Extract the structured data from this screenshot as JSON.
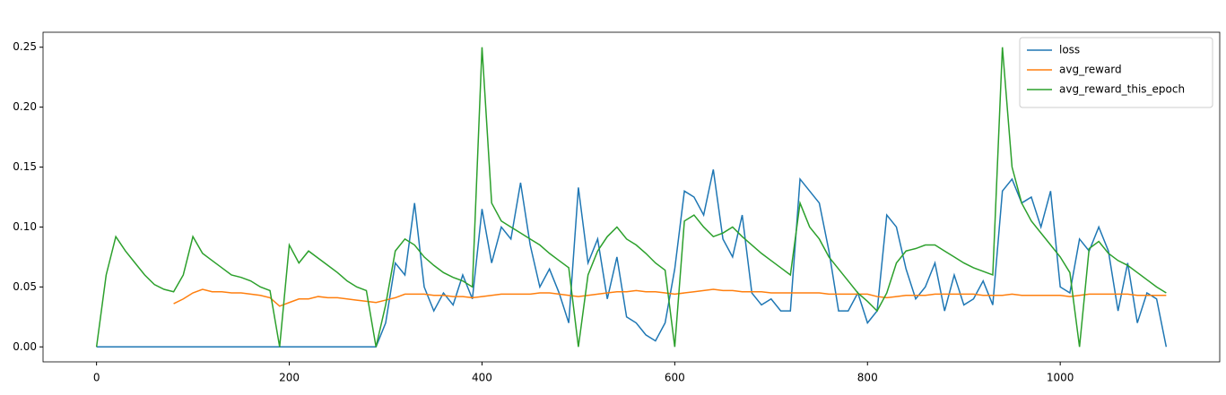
{
  "chart_data": {
    "type": "line",
    "x": [
      0,
      10,
      20,
      30,
      40,
      50,
      60,
      70,
      80,
      90,
      100,
      110,
      120,
      130,
      140,
      150,
      160,
      170,
      180,
      190,
      200,
      210,
      220,
      230,
      240,
      250,
      260,
      270,
      280,
      290,
      300,
      310,
      320,
      330,
      340,
      350,
      360,
      370,
      380,
      390,
      400,
      410,
      420,
      430,
      440,
      450,
      460,
      470,
      480,
      490,
      500,
      510,
      520,
      530,
      540,
      550,
      560,
      570,
      580,
      590,
      600,
      610,
      620,
      630,
      640,
      650,
      660,
      670,
      680,
      690,
      700,
      710,
      720,
      730,
      740,
      750,
      760,
      770,
      780,
      790,
      800,
      810,
      820,
      830,
      840,
      850,
      860,
      870,
      880,
      890,
      900,
      910,
      920,
      930,
      940,
      950,
      960,
      970,
      980,
      990,
      1000,
      1010,
      1020,
      1030,
      1040,
      1050,
      1060,
      1070,
      1080,
      1090,
      1100,
      1110
    ],
    "series": [
      {
        "name": "loss",
        "color": "#1f77b4",
        "values": [
          0,
          0,
          0,
          0,
          0,
          0,
          0,
          0,
          0,
          0,
          0,
          0,
          0,
          0,
          0,
          0,
          0,
          0,
          0,
          0,
          0,
          0,
          0,
          0,
          0,
          0,
          0,
          0,
          0,
          0,
          0.02,
          0.07,
          0.06,
          0.12,
          0.05,
          0.03,
          0.045,
          0.035,
          0.06,
          0.04,
          0.115,
          0.07,
          0.1,
          0.09,
          0.137,
          0.085,
          0.05,
          0.065,
          0.045,
          0.02,
          0.133,
          0.07,
          0.09,
          0.04,
          0.075,
          0.025,
          0.02,
          0.01,
          0.005,
          0.02,
          0.065,
          0.13,
          0.125,
          0.11,
          0.148,
          0.09,
          0.075,
          0.11,
          0.045,
          0.035,
          0.04,
          0.03,
          0.03,
          0.14,
          0.13,
          0.12,
          0.08,
          0.03,
          0.03,
          0.045,
          0.02,
          0.03,
          0.11,
          0.1,
          0.065,
          0.04,
          0.05,
          0.07,
          0.03,
          0.06,
          0.035,
          0.04,
          0.055,
          0.035,
          0.13,
          0.14,
          0.12,
          0.125,
          0.1,
          0.13,
          0.05,
          0.045,
          0.09,
          0.08,
          0.1,
          0.08,
          0.03,
          0.07,
          0.02,
          0.045,
          0.04,
          0
        ]
      },
      {
        "name": "avg_reward",
        "color": "#ff7f0e",
        "values": [
          null,
          null,
          null,
          null,
          null,
          null,
          null,
          null,
          0.036,
          0.04,
          0.045,
          0.048,
          0.046,
          0.046,
          0.045,
          0.045,
          0.044,
          0.043,
          0.041,
          0.034,
          0.037,
          0.04,
          0.04,
          0.042,
          0.041,
          0.041,
          0.04,
          0.039,
          0.038,
          0.037,
          0.039,
          0.041,
          0.044,
          0.044,
          0.044,
          0.043,
          0.043,
          0.042,
          0.042,
          0.041,
          0.042,
          0.043,
          0.044,
          0.044,
          0.044,
          0.044,
          0.045,
          0.045,
          0.044,
          0.043,
          0.042,
          0.043,
          0.044,
          0.045,
          0.046,
          0.046,
          0.047,
          0.046,
          0.046,
          0.045,
          0.044,
          0.045,
          0.046,
          0.047,
          0.048,
          0.047,
          0.047,
          0.046,
          0.046,
          0.046,
          0.045,
          0.045,
          0.045,
          0.045,
          0.045,
          0.045,
          0.044,
          0.044,
          0.044,
          0.044,
          0.044,
          0.042,
          0.041,
          0.042,
          0.043,
          0.043,
          0.043,
          0.044,
          0.044,
          0.044,
          0.044,
          0.044,
          0.043,
          0.043,
          0.043,
          0.044,
          0.043,
          0.043,
          0.043,
          0.043,
          0.043,
          0.042,
          0.043,
          0.044,
          0.044,
          0.044,
          0.044,
          0.044,
          0.043,
          0.043,
          0.043,
          0.043
        ]
      },
      {
        "name": "avg_reward_this_epoch",
        "color": "#2ca02c",
        "values": [
          0,
          0.06,
          0.092,
          0.08,
          0.07,
          0.06,
          0.052,
          0.048,
          0.046,
          0.06,
          0.092,
          0.078,
          0.072,
          0.066,
          0.06,
          0.058,
          0.055,
          0.05,
          0.047,
          0,
          0.085,
          0.07,
          0.08,
          0.074,
          0.068,
          0.062,
          0.055,
          0.05,
          0.047,
          0,
          0.035,
          0.08,
          0.09,
          0.085,
          0.075,
          0.068,
          0.062,
          0.058,
          0.055,
          0.05,
          0.25,
          0.12,
          0.105,
          0.1,
          0.095,
          0.09,
          0.085,
          0.078,
          0.072,
          0.066,
          0,
          0.06,
          0.08,
          0.092,
          0.1,
          0.09,
          0.085,
          0.078,
          0.07,
          0.064,
          0,
          0.105,
          0.11,
          0.1,
          0.092,
          0.095,
          0.1,
          0.092,
          0.085,
          0.078,
          0.072,
          0.066,
          0.06,
          0.12,
          0.1,
          0.09,
          0.075,
          0.065,
          0.055,
          0.045,
          0.038,
          0.03,
          0.045,
          0.07,
          0.08,
          0.082,
          0.085,
          0.085,
          0.08,
          0.075,
          0.07,
          0.066,
          0.063,
          0.06,
          0.25,
          0.15,
          0.12,
          0.105,
          0.095,
          0.085,
          0.075,
          0.062,
          0,
          0.082,
          0.088,
          0.078,
          0.072,
          0.068,
          0.062,
          0.056,
          0.05,
          0.045
        ]
      }
    ],
    "xlim": [
      -55.5,
      1165.5
    ],
    "ylim": [
      -0.0125,
      0.2625
    ],
    "xticks": [
      0,
      200,
      400,
      600,
      800,
      1000
    ],
    "yticks": [
      {
        "value": 0,
        "label": "0.00"
      },
      0.05,
      {
        "value": 0.1,
        "label": "0.10"
      },
      0.15,
      {
        "value": 0.2,
        "label": "0.20"
      },
      0.25
    ],
    "legend": "upper right"
  }
}
